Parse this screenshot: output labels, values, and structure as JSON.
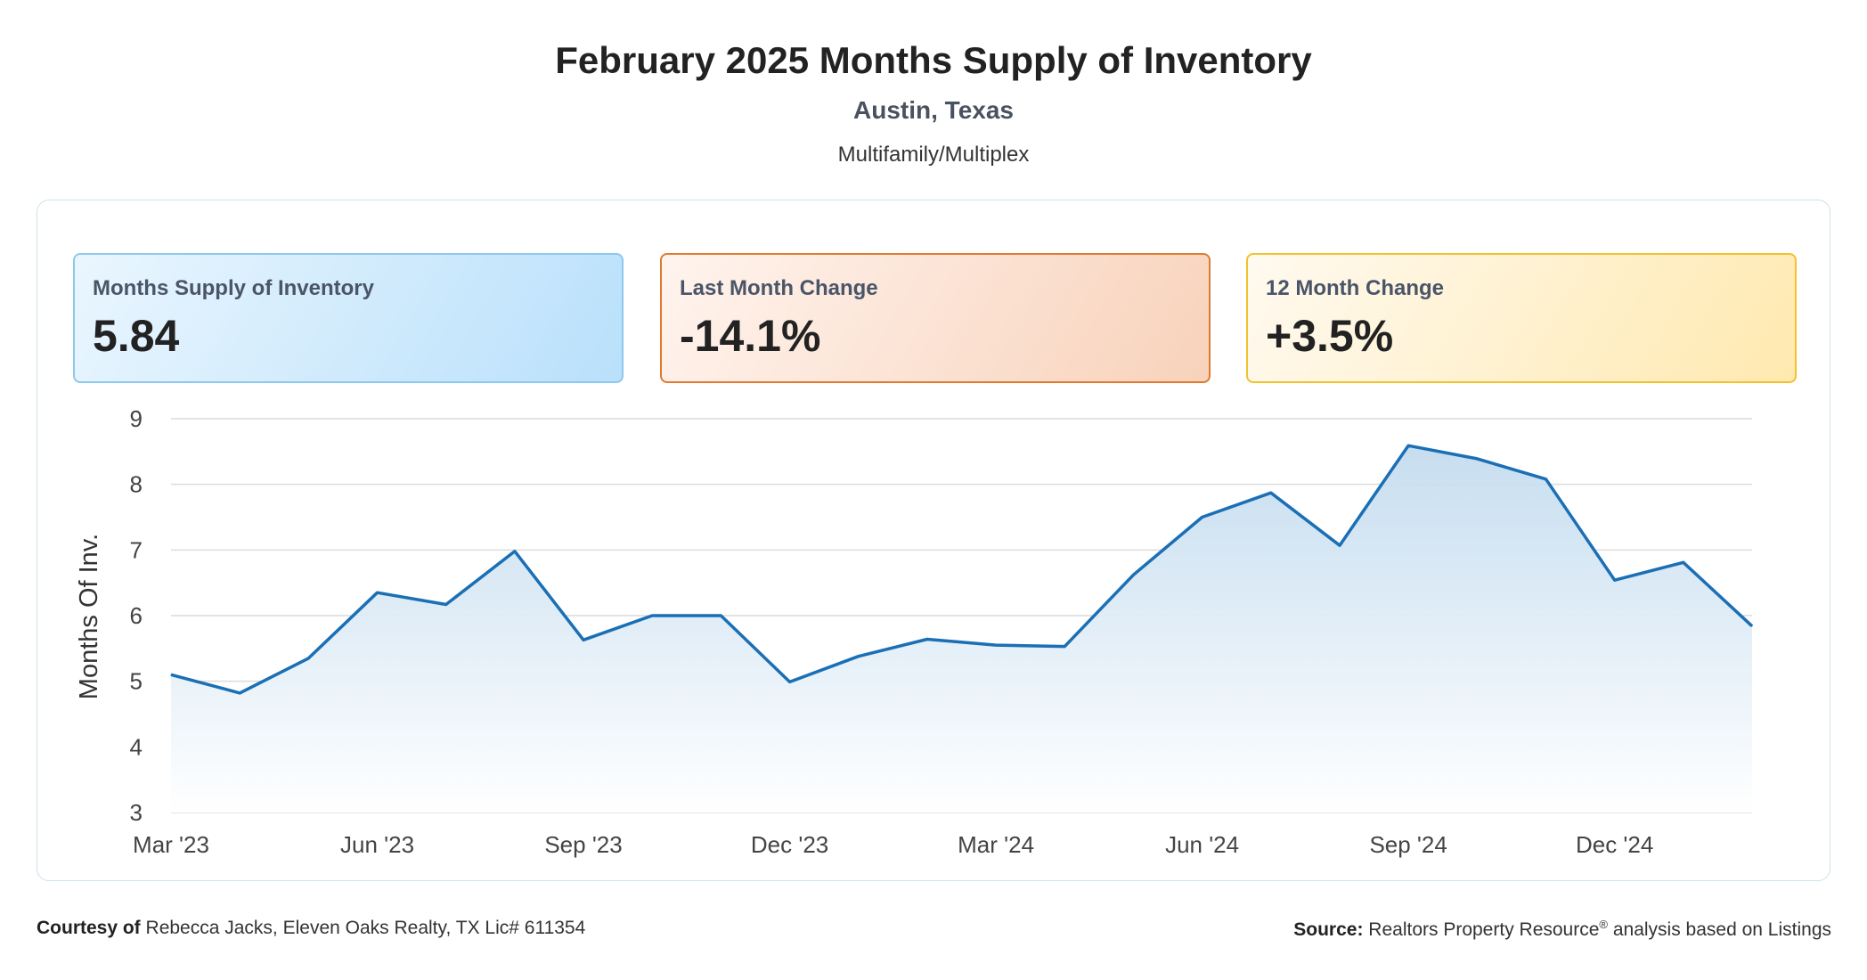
{
  "header": {
    "title": "February 2025 Months Supply of Inventory",
    "location": "Austin, Texas",
    "category": "Multifamily/Multiplex"
  },
  "cards": [
    {
      "label": "Months Supply of Inventory",
      "value": "5.84"
    },
    {
      "label": "Last Month Change",
      "value": "-14.1%"
    },
    {
      "label": "12 Month Change",
      "value": "+3.5%"
    }
  ],
  "chart_data": {
    "type": "area",
    "ylabel": "Months Of Inv.",
    "xlabel": "",
    "ylim": [
      3,
      9
    ],
    "yticks": [
      3,
      4,
      5,
      6,
      7,
      8,
      9
    ],
    "grid": true,
    "line_color": "#1a6fb5",
    "x": [
      "Mar '23",
      "Apr '23",
      "May '23",
      "Jun '23",
      "Jul '23",
      "Aug '23",
      "Sep '23",
      "Oct '23",
      "Nov '23",
      "Dec '23",
      "Jan '24",
      "Feb '24",
      "Mar '24",
      "Apr '24",
      "May '24",
      "Jun '24",
      "Jul '24",
      "Aug '24",
      "Sep '24",
      "Oct '24",
      "Nov '24",
      "Dec '24",
      "Jan '25",
      "Feb '25"
    ],
    "xtick_labels": [
      "Mar '23",
      "Jun '23",
      "Sep '23",
      "Dec '23",
      "Mar '24",
      "Jun '24",
      "Sep '24",
      "Dec '24"
    ],
    "series": [
      {
        "values": [
          5.1,
          4.82,
          5.35,
          6.35,
          6.17,
          6.98,
          5.63,
          6.0,
          6.0,
          4.99,
          5.38,
          5.64,
          5.55,
          5.53,
          6.62,
          7.5,
          7.87,
          7.07,
          8.59,
          8.39,
          8.08,
          6.54,
          6.81,
          5.84
        ]
      }
    ]
  },
  "footer": {
    "courtesy_label": "Courtesy of",
    "courtesy_text": "Rebecca Jacks, Eleven Oaks Realty, TX Lic# 611354",
    "source_label": "Source:",
    "source_text": "Realtors Property Resource",
    "source_mark": "®",
    "source_suffix": "analysis based on Listings"
  }
}
